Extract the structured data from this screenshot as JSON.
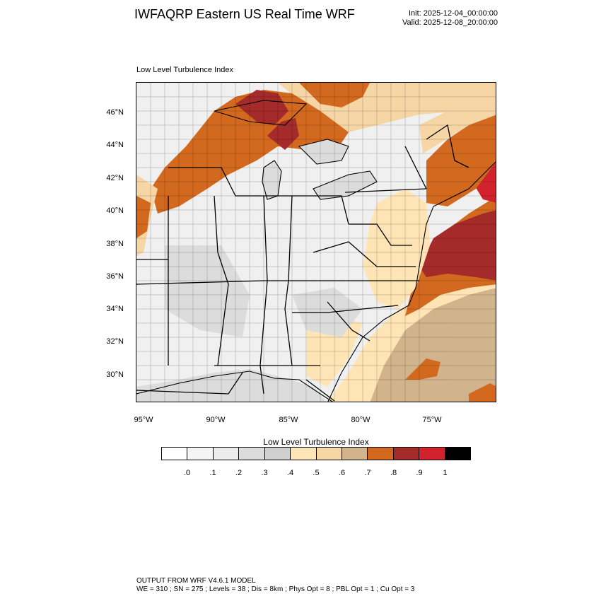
{
  "header": {
    "title": "IWFAQRP Eastern US Real Time WRF",
    "init": "Init: 2025-12-04_00:00:00",
    "valid": "Valid: 2025-12-08_20:00:00"
  },
  "map": {
    "subtitle": "Low Level Turbulence Index",
    "lat_labels": [
      "46°N",
      "44°N",
      "42°N",
      "40°N",
      "38°N",
      "36°N",
      "34°N",
      "32°N",
      "30°N"
    ],
    "lon_labels": [
      "95°W",
      "90°W",
      "85°W",
      "80°W",
      "75°W"
    ]
  },
  "colorbar": {
    "title": "Low Level Turbulence Index",
    "colors": [
      "#ffffff",
      "#f5f5f5",
      "#ececec",
      "#dcdcdc",
      "#cfcfcf",
      "#ffe4b5",
      "#f7d6a6",
      "#d2b48c",
      "#d2691e",
      "#a52a2a",
      "#d2222d",
      "#000000"
    ],
    "labels": [
      ".0",
      ".1",
      ".2",
      ".3",
      ".4",
      ".5",
      ".6",
      ".7",
      ".8",
      ".9",
      "1"
    ]
  },
  "footer": {
    "line1": "OUTPUT FROM WRF V4.6.1 MODEL",
    "line2": "WE = 310 ; SN = 275 ; Levels = 38 ; Dis = 8km ; Phys Opt = 8 ; PBL Opt = 1 ; Cu Opt = 3"
  }
}
